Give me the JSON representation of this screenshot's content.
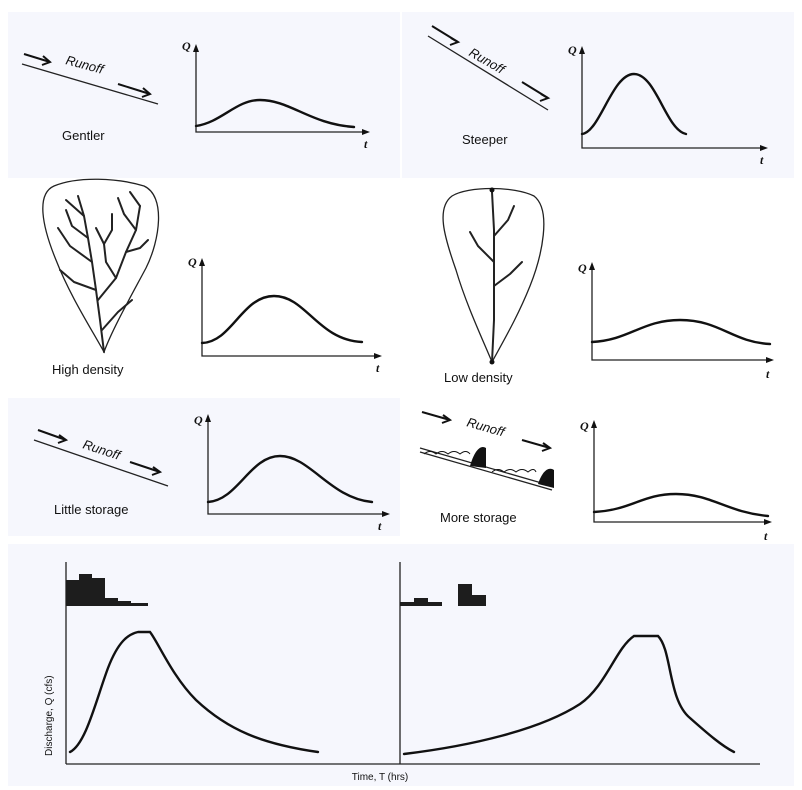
{
  "labels": {
    "gentler": "Gentler",
    "steeper": "Steeper",
    "high_density": "High density",
    "low_density": "Low density",
    "little_storage": "Little storage",
    "more_storage": "More storage",
    "runoff": "Runoff",
    "q_axis": "Q",
    "t_axis": "t",
    "discharge_axis": "Discharge, Q (cfs)",
    "time_axis": "Time, T (hrs)"
  },
  "icons": [
    "arrow-right-icon",
    "basin-outline-icon",
    "stream-network-icon",
    "rainfall-hyetograph-icon"
  ],
  "colors": {
    "ink": "#111111",
    "panel_background": "#f6f7fd"
  }
}
